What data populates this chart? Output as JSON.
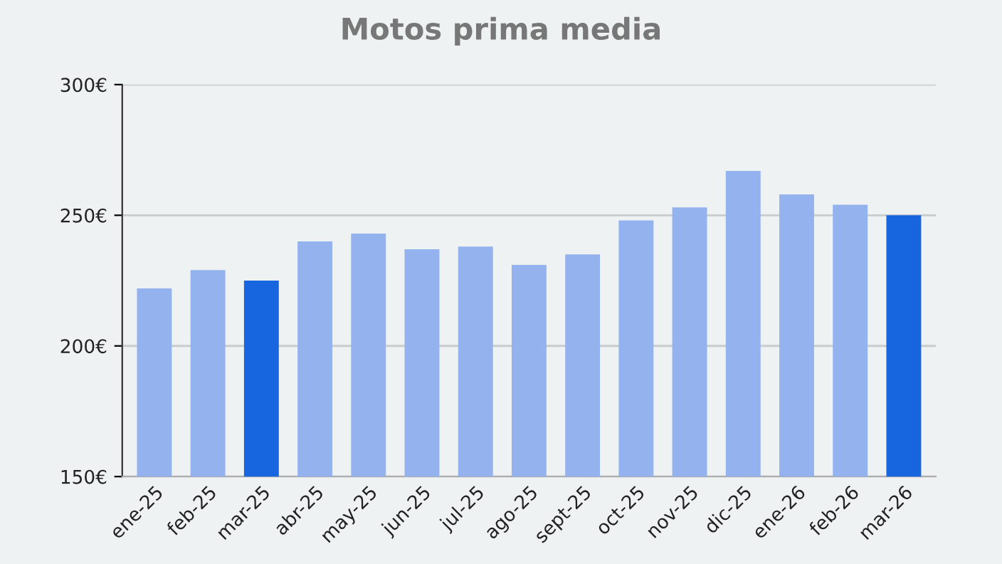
{
  "chart_data": {
    "type": "bar",
    "title": "Motos prima media",
    "categories": [
      "ene-25",
      "feb-25",
      "mar-25",
      "abr-25",
      "may-25",
      "jun-25",
      "jul-25",
      "ago-25",
      "sept-25",
      "oct-25",
      "nov-25",
      "dic-25",
      "ene-26",
      "feb-26",
      "mar-26"
    ],
    "values": [
      222,
      229,
      225,
      240,
      243,
      237,
      238,
      231,
      235,
      248,
      253,
      267,
      258,
      254,
      250
    ],
    "colors": [
      "#94b2ee",
      "#94b2ee",
      "#1766e0",
      "#94b2ee",
      "#94b2ee",
      "#94b2ee",
      "#94b2ee",
      "#94b2ee",
      "#94b2ee",
      "#94b2ee",
      "#94b2ee",
      "#94b2ee",
      "#94b2ee",
      "#94b2ee",
      "#1766e0"
    ],
    "ylim": [
      150,
      300
    ],
    "yticks": [
      {
        "value": 150,
        "label": "150€"
      },
      {
        "value": 200,
        "label": "200€"
      },
      {
        "value": 250,
        "label": "250€"
      },
      {
        "value": 300,
        "label": "300€"
      }
    ],
    "grid": "y"
  }
}
